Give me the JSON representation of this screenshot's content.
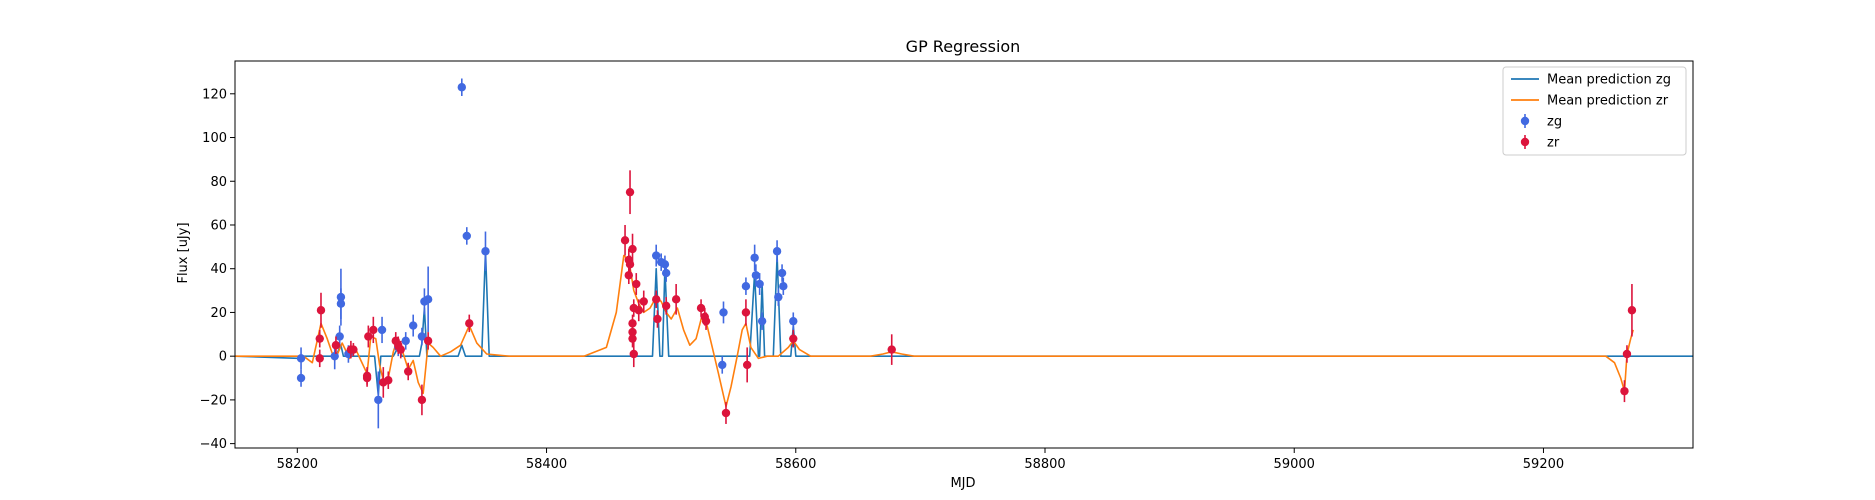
{
  "chart_data": {
    "type": "scatter",
    "title": "GP Regression",
    "xlabel": "MJD",
    "ylabel": "Flux [uJy]",
    "xlim": [
      58150,
      59320
    ],
    "ylim": [
      -42,
      135
    ],
    "xticks": [
      58200,
      58400,
      58600,
      58800,
      59000,
      59200
    ],
    "yticks": [
      -40,
      -20,
      0,
      20,
      40,
      60,
      80,
      100,
      120
    ],
    "grid": false,
    "legend_position": "top-right",
    "legend": [
      {
        "label": "Mean prediction zg",
        "kind": "line",
        "color": "#1f77b4"
      },
      {
        "label": "Mean prediction zr",
        "kind": "line",
        "color": "#ff7f0e"
      },
      {
        "label": "zg",
        "kind": "errorbar",
        "color": "#4169e1"
      },
      {
        "label": "zr",
        "kind": "errorbar",
        "color": "#dc143c"
      }
    ],
    "series": [
      {
        "name": "zg",
        "color": "#4169e1",
        "points": [
          {
            "x": 58203,
            "y": -1,
            "err": 5
          },
          {
            "x": 58203,
            "y": -10,
            "err": 4
          },
          {
            "x": 58230,
            "y": 0,
            "err": 6
          },
          {
            "x": 58234,
            "y": 9,
            "err": 5
          },
          {
            "x": 58235,
            "y": 27,
            "err": 13
          },
          {
            "x": 58235,
            "y": 24,
            "err": 7
          },
          {
            "x": 58241,
            "y": 1,
            "err": 4
          },
          {
            "x": 58265,
            "y": -20,
            "err": 13
          },
          {
            "x": 58268,
            "y": 12,
            "err": 6
          },
          {
            "x": 58281,
            "y": 4,
            "err": 4
          },
          {
            "x": 58287,
            "y": 7,
            "err": 4
          },
          {
            "x": 58293,
            "y": 14,
            "err": 5
          },
          {
            "x": 58300,
            "y": 9,
            "err": 4
          },
          {
            "x": 58302,
            "y": 25,
            "err": 6
          },
          {
            "x": 58305,
            "y": 26,
            "err": 15
          },
          {
            "x": 58332,
            "y": 123,
            "err": 4
          },
          {
            "x": 58336,
            "y": 55,
            "err": 4
          },
          {
            "x": 58351,
            "y": 48,
            "err": 9
          },
          {
            "x": 58488,
            "y": 46,
            "err": 5
          },
          {
            "x": 58492,
            "y": 43,
            "err": 4
          },
          {
            "x": 58495,
            "y": 42,
            "err": 4
          },
          {
            "x": 58496,
            "y": 38,
            "err": 4
          },
          {
            "x": 58541,
            "y": -4,
            "err": 4
          },
          {
            "x": 58542,
            "y": 20,
            "err": 5
          },
          {
            "x": 58560,
            "y": 32,
            "err": 4
          },
          {
            "x": 58567,
            "y": 45,
            "err": 6
          },
          {
            "x": 58568,
            "y": 37,
            "err": 5
          },
          {
            "x": 58571,
            "y": 33,
            "err": 5
          },
          {
            "x": 58573,
            "y": 16,
            "err": 4
          },
          {
            "x": 58585,
            "y": 48,
            "err": 5
          },
          {
            "x": 58586,
            "y": 27,
            "err": 4
          },
          {
            "x": 58589,
            "y": 38,
            "err": 4
          },
          {
            "x": 58590,
            "y": 32,
            "err": 4
          },
          {
            "x": 58598,
            "y": 16,
            "err": 4
          }
        ]
      },
      {
        "name": "zr",
        "color": "#dc143c",
        "points": [
          {
            "x": 58218,
            "y": 8,
            "err": 4
          },
          {
            "x": 58218,
            "y": -1,
            "err": 4
          },
          {
            "x": 58219,
            "y": 21,
            "err": 8
          },
          {
            "x": 58231,
            "y": 5,
            "err": 4
          },
          {
            "x": 58243,
            "y": 3,
            "err": 4
          },
          {
            "x": 58245,
            "y": 3,
            "err": 3
          },
          {
            "x": 58256,
            "y": -9,
            "err": 4
          },
          {
            "x": 58256,
            "y": -10,
            "err": 4
          },
          {
            "x": 58257,
            "y": 9,
            "err": 5
          },
          {
            "x": 58261,
            "y": 12,
            "err": 6
          },
          {
            "x": 58269,
            "y": -12,
            "err": 7
          },
          {
            "x": 58273,
            "y": -11,
            "err": 4
          },
          {
            "x": 58279,
            "y": 7,
            "err": 4
          },
          {
            "x": 58281,
            "y": 5,
            "err": 4
          },
          {
            "x": 58283,
            "y": 3,
            "err": 4
          },
          {
            "x": 58289,
            "y": -7,
            "err": 4
          },
          {
            "x": 58300,
            "y": -20,
            "err": 7
          },
          {
            "x": 58305,
            "y": 7,
            "err": 4
          },
          {
            "x": 58338,
            "y": 15,
            "err": 4
          },
          {
            "x": 58463,
            "y": 53,
            "err": 7
          },
          {
            "x": 58467,
            "y": 75,
            "err": 10
          },
          {
            "x": 58466,
            "y": 44,
            "err": 5
          },
          {
            "x": 58467,
            "y": 42,
            "err": 4
          },
          {
            "x": 58466,
            "y": 37,
            "err": 4
          },
          {
            "x": 58469,
            "y": 49,
            "err": 7
          },
          {
            "x": 58470,
            "y": 22,
            "err": 4
          },
          {
            "x": 58469,
            "y": 15,
            "err": 4
          },
          {
            "x": 58469,
            "y": 11,
            "err": 4
          },
          {
            "x": 58469,
            "y": 8,
            "err": 4
          },
          {
            "x": 58470,
            "y": 1,
            "err": 6
          },
          {
            "x": 58472,
            "y": 33,
            "err": 5
          },
          {
            "x": 58474,
            "y": 21,
            "err": 5
          },
          {
            "x": 58478,
            "y": 25,
            "err": 5
          },
          {
            "x": 58488,
            "y": 26,
            "err": 4
          },
          {
            "x": 58489,
            "y": 17,
            "err": 4
          },
          {
            "x": 58496,
            "y": 23,
            "err": 4
          },
          {
            "x": 58504,
            "y": 26,
            "err": 7
          },
          {
            "x": 58524,
            "y": 22,
            "err": 4
          },
          {
            "x": 58527,
            "y": 18,
            "err": 4
          },
          {
            "x": 58528,
            "y": 16,
            "err": 4
          },
          {
            "x": 58544,
            "y": -26,
            "err": 5
          },
          {
            "x": 58560,
            "y": 20,
            "err": 6
          },
          {
            "x": 58561,
            "y": -4,
            "err": 8
          },
          {
            "x": 58598,
            "y": 8,
            "err": 4
          },
          {
            "x": 58677,
            "y": 3,
            "err": 7
          },
          {
            "x": 59265,
            "y": -16,
            "err": 5
          },
          {
            "x": 59267,
            "y": 1,
            "err": 4
          },
          {
            "x": 59271,
            "y": 21,
            "err": 12
          }
        ]
      },
      {
        "name": "Mean prediction zg",
        "color": "#1f77b4",
        "line": [
          [
            58150,
            0
          ],
          [
            58203,
            -1
          ],
          [
            58204,
            0
          ],
          [
            58227,
            0
          ],
          [
            58230,
            -1
          ],
          [
            58235,
            5
          ],
          [
            58237,
            0
          ],
          [
            58262,
            0
          ],
          [
            58265,
            -18
          ],
          [
            58267,
            0
          ],
          [
            58277,
            0
          ],
          [
            58281,
            4
          ],
          [
            58284,
            0
          ],
          [
            58298,
            0
          ],
          [
            58300,
            6
          ],
          [
            58302,
            22
          ],
          [
            58304,
            0
          ],
          [
            58329,
            0
          ],
          [
            58332,
            5
          ],
          [
            58335,
            0
          ],
          [
            58348,
            0
          ],
          [
            58351,
            48
          ],
          [
            58354,
            0
          ],
          [
            58485,
            0
          ],
          [
            58488,
            40
          ],
          [
            58491,
            0
          ],
          [
            58493,
            0
          ],
          [
            58495,
            40
          ],
          [
            58498,
            0
          ],
          [
            58563,
            0
          ],
          [
            58567,
            38
          ],
          [
            58570,
            0
          ],
          [
            58571,
            0
          ],
          [
            58573,
            33
          ],
          [
            58575,
            0
          ],
          [
            58582,
            0
          ],
          [
            58585,
            46
          ],
          [
            58588,
            0
          ],
          [
            58596,
            0
          ],
          [
            58598,
            14
          ],
          [
            58600,
            0
          ],
          [
            59320,
            0
          ]
        ]
      },
      {
        "name": "Mean prediction zr",
        "color": "#ff7f0e",
        "line": [
          [
            58150,
            0
          ],
          [
            58205,
            0
          ],
          [
            58212,
            -3
          ],
          [
            58219,
            15
          ],
          [
            58224,
            8
          ],
          [
            58230,
            -2
          ],
          [
            58236,
            6
          ],
          [
            58242,
            -1
          ],
          [
            58247,
            3
          ],
          [
            58251,
            -2
          ],
          [
            58256,
            -8
          ],
          [
            58259,
            9
          ],
          [
            58263,
            8
          ],
          [
            58266,
            -4
          ],
          [
            58269,
            -11
          ],
          [
            58273,
            -10
          ],
          [
            58277,
            2
          ],
          [
            58280,
            7
          ],
          [
            58284,
            3
          ],
          [
            58289,
            -6
          ],
          [
            58293,
            -2
          ],
          [
            58297,
            -12
          ],
          [
            58301,
            -17
          ],
          [
            58305,
            6
          ],
          [
            58309,
            4
          ],
          [
            58315,
            0
          ],
          [
            58323,
            2
          ],
          [
            58331,
            5
          ],
          [
            58338,
            14
          ],
          [
            58344,
            6
          ],
          [
            58352,
            1
          ],
          [
            58370,
            0
          ],
          [
            58430,
            0
          ],
          [
            58448,
            4
          ],
          [
            58456,
            20
          ],
          [
            58462,
            46
          ],
          [
            58466,
            44
          ],
          [
            58470,
            30
          ],
          [
            58474,
            24
          ],
          [
            58478,
            20
          ],
          [
            58483,
            22
          ],
          [
            58488,
            27
          ],
          [
            58492,
            25
          ],
          [
            58496,
            20
          ],
          [
            58500,
            17
          ],
          [
            58505,
            22
          ],
          [
            58510,
            12
          ],
          [
            58515,
            5
          ],
          [
            58520,
            8
          ],
          [
            58525,
            19
          ],
          [
            58528,
            16
          ],
          [
            58533,
            4
          ],
          [
            58538,
            -8
          ],
          [
            58544,
            -23
          ],
          [
            58548,
            -14
          ],
          [
            58553,
            0
          ],
          [
            58557,
            12
          ],
          [
            58560,
            15
          ],
          [
            58564,
            4
          ],
          [
            58570,
            -1
          ],
          [
            58577,
            0
          ],
          [
            58586,
            0
          ],
          [
            58594,
            4
          ],
          [
            58598,
            7
          ],
          [
            58603,
            3
          ],
          [
            58612,
            0
          ],
          [
            58660,
            0
          ],
          [
            58670,
            1
          ],
          [
            58677,
            2
          ],
          [
            58685,
            1
          ],
          [
            58695,
            0
          ],
          [
            59250,
            0
          ],
          [
            59257,
            -3
          ],
          [
            59262,
            -10
          ],
          [
            59265,
            -16
          ],
          [
            59267,
            1
          ],
          [
            59270,
            8
          ],
          [
            59272,
            12
          ]
        ]
      }
    ]
  }
}
